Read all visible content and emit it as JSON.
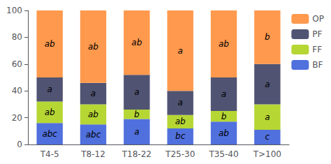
{
  "chart_data": {
    "type": "bar",
    "stacked": true,
    "categories": [
      "T4-5",
      "T8-12",
      "T18-22",
      "T25-30",
      "T35-40",
      "T>100"
    ],
    "series": [
      {
        "name": "BF",
        "values": [
          16,
          15,
          19,
          12,
          17,
          11
        ],
        "annotations": [
          "abc",
          "abc",
          "a",
          "bc",
          "ab",
          "c"
        ]
      },
      {
        "name": "FF",
        "values": [
          16,
          15,
          7,
          10,
          8,
          19
        ],
        "annotations": [
          "ab",
          "ab",
          "b",
          "ab",
          "b",
          "a"
        ]
      },
      {
        "name": "PF",
        "values": [
          18,
          16,
          26,
          18,
          25,
          30
        ],
        "annotations": [
          "a",
          "a",
          "a",
          "a",
          "a",
          "a"
        ]
      },
      {
        "name": "OP",
        "values": [
          50,
          54,
          48,
          60,
          50,
          40
        ],
        "annotations": [
          "ab",
          "ab",
          "ab",
          "a",
          "ab",
          "b"
        ]
      }
    ],
    "ylim": [
      0,
      100
    ],
    "yticks": [
      0,
      20,
      40,
      60,
      80,
      100
    ],
    "grid": false,
    "legend": "right"
  }
}
